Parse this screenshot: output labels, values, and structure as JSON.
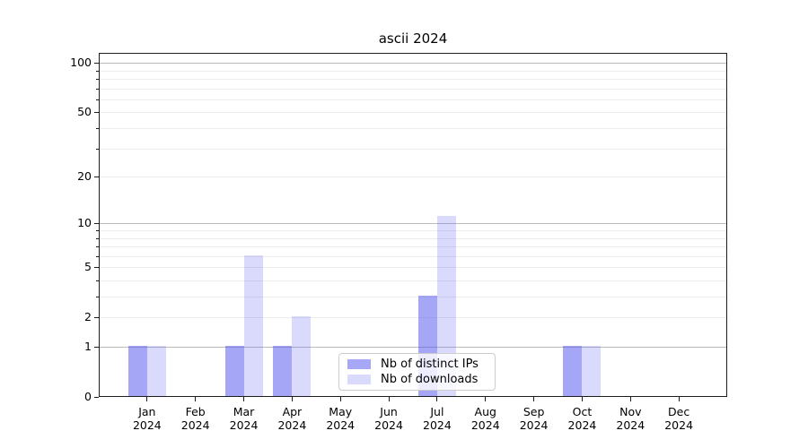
{
  "figure": {
    "background": "#ffffff"
  },
  "legend": {
    "items": [
      {
        "label": "Nb of distinct IPs",
        "color": "#a7a7f7"
      },
      {
        "label": "Nb of downloads",
        "color": "#dadafc"
      }
    ]
  },
  "chart_data": {
    "type": "bar",
    "title": "ascii 2024",
    "categories": [
      "Jan 2024",
      "Feb 2024",
      "Mar 2024",
      "Apr 2024",
      "May 2024",
      "Jun 2024",
      "Jul 2024",
      "Aug 2024",
      "Sep 2024",
      "Oct 2024",
      "Nov 2024",
      "Dec 2024"
    ],
    "series": [
      {
        "name": "Nb of distinct IPs",
        "values": [
          1,
          0,
          1,
          1,
          0,
          0,
          3,
          0,
          0,
          1,
          0,
          0
        ],
        "base_color": "#5555f0",
        "alpha": 0.52
      },
      {
        "name": "Nb of downloads",
        "values": [
          1,
          0,
          6,
          2,
          0,
          0,
          11,
          0,
          0,
          1,
          0,
          0
        ],
        "base_color": "#5555f0",
        "alpha": 0.22
      }
    ],
    "yscale": "log1p",
    "ylim": [
      0,
      115
    ],
    "yticks_labeled": [
      0,
      1,
      2,
      5,
      10,
      20,
      50,
      100
    ],
    "yticks_decade": [
      1,
      10,
      100
    ],
    "yticks_minor": [
      3,
      4,
      6,
      7,
      8,
      9,
      30,
      40,
      60,
      70,
      80,
      90
    ],
    "grid": true,
    "legend_position": "lower-center-inside",
    "colors": {
      "grid_decade": "#bbbbbb",
      "grid_minor": "#ececec",
      "axis": "#1c1c1c",
      "text": "#000000"
    }
  }
}
